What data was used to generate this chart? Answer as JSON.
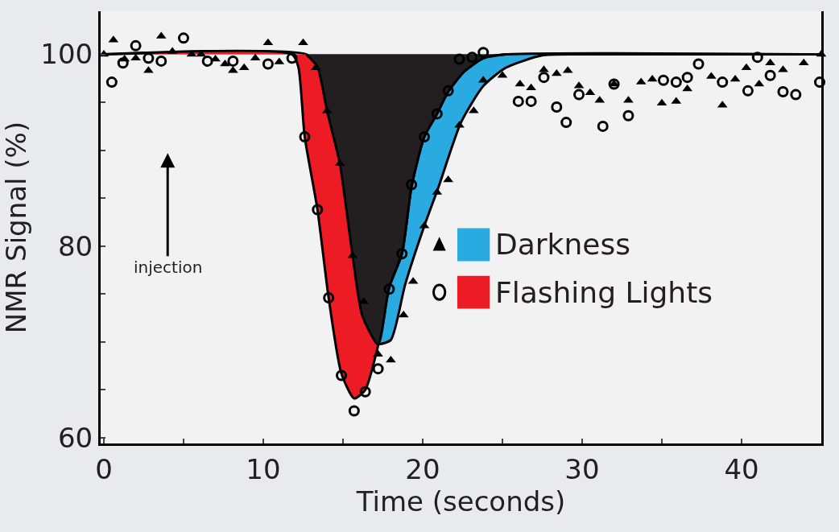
{
  "chart_data": {
    "type": "area",
    "xlabel": "Time (seconds)",
    "ylabel": "NMR Signal (%)",
    "xlim": [
      -0.2,
      45
    ],
    "ylim": [
      59.4,
      104.5
    ],
    "xticks": [
      0,
      {
        "value": 5,
        "label": null
      },
      10,
      {
        "value": 15,
        "label": null
      },
      20,
      {
        "value": 25,
        "label": null
      },
      30,
      {
        "value": 35,
        "label": null
      },
      40,
      {
        "value": 45,
        "label": null
      }
    ],
    "yticks": [
      60,
      {
        "value": 65,
        "label": null
      },
      {
        "value": 70,
        "label": null
      },
      {
        "value": 75,
        "label": null
      },
      80,
      {
        "value": 85,
        "label": null
      },
      {
        "value": 90,
        "label": null
      },
      {
        "value": 95,
        "label": null
      },
      100
    ],
    "annotations": [
      "injection"
    ],
    "legend": "right",
    "grid": false,
    "series": [
      {
        "name": "Darkness",
        "color": "#29abe2",
        "x": [
          0,
          12.7,
          13.4,
          14.0,
          14.8,
          15.6,
          16.2,
          17.2,
          18.0,
          18.9,
          20.1,
          21.0,
          22.4,
          23.8,
          25.2,
          27.5,
          30.2,
          45
        ],
        "values": [
          100,
          100,
          98.7,
          94.1,
          88.6,
          79.0,
          72.8,
          69.8,
          70.2,
          76.0,
          82.1,
          86.2,
          92.9,
          96.7,
          98.6,
          99.9,
          100,
          100
        ]
      },
      {
        "name": "Flashing Lights",
        "color": "#ed1c24",
        "x": [
          0,
          11.8,
          12.2,
          12.6,
          13.4,
          14.1,
          14.9,
          15.7,
          16.4,
          17.2,
          17.9,
          18.7,
          19.3,
          20.1,
          20.9,
          21.6,
          22.6,
          23.8,
          25.2,
          45
        ],
        "values": [
          100,
          100,
          98.7,
          91.4,
          83.8,
          74.6,
          66.7,
          64.1,
          65.0,
          69.6,
          75.7,
          79.2,
          86.2,
          91.4,
          93.8,
          96.1,
          98.2,
          99.6,
          100,
          100
        ]
      },
      {
        "color": "#231f20",
        "x": [
          12.7,
          13.4,
          14.0,
          14.8,
          15.6,
          16.2,
          17.2,
          17.9,
          18.7,
          19.3,
          20.1,
          20.9,
          21.6,
          22.6,
          23.8,
          25.2
        ],
        "values": [
          100,
          98.7,
          94.1,
          88.6,
          79.0,
          72.8,
          69.7,
          75.7,
          79.2,
          86.2,
          91.4,
          93.8,
          96.1,
          98.2,
          99.6,
          100
        ]
      },
      {
        "type": "scatter",
        "marker": "triangle",
        "color": "#000000",
        "x": [
          0,
          0.6,
          1.3,
          2.0,
          2.8,
          3.6,
          4.3,
          5.5,
          6.1,
          7.0,
          7.6,
          8.1,
          8.8,
          9.5,
          10.3,
          11.0,
          12.5,
          13.3,
          14.0,
          14.8,
          15.6,
          16.3,
          17.2,
          18.0,
          18.8,
          19.4,
          20.1,
          20.9,
          21.6,
          22.3,
          23.2,
          23.8,
          25.0,
          26.1,
          26.8,
          27.6,
          28.4,
          29.1,
          29.8,
          30.5,
          31.1,
          32.0,
          32.9,
          33.7,
          34.4,
          35.0,
          35.9,
          36.6,
          38.1,
          38.8,
          39.6,
          40.3,
          41.1,
          41.8,
          42.6,
          43.9,
          45.0
        ],
        "values": [
          100,
          101.5,
          99.5,
          99.6,
          98.3,
          101.9,
          100.3,
          100,
          100,
          99.5,
          99,
          98.3,
          98.6,
          99.6,
          101.2,
          99.2,
          101.2,
          98.6,
          94.1,
          88.6,
          79.0,
          74.2,
          68.7,
          68.1,
          72.8,
          76.3,
          82.1,
          85.6,
          86.9,
          92.6,
          94.1,
          97.3,
          97.8,
          96.9,
          96.5,
          98.4,
          98.0,
          98.3,
          96.7,
          96.0,
          95.2,
          96.9,
          95.2,
          97.1,
          97.4,
          94.9,
          95.1,
          96.4,
          97.7,
          94.7,
          97.4,
          98.6,
          96.9,
          99.1,
          98.4,
          99.1,
          100.0
        ]
      },
      {
        "type": "scatter",
        "marker": "circle",
        "color": "#000000",
        "x": [
          0.5,
          1.2,
          2.0,
          2.8,
          3.6,
          5.0,
          6.5,
          8.1,
          10.3,
          11.8,
          12.6,
          13.4,
          14.1,
          14.9,
          15.7,
          16.4,
          17.2,
          17.9,
          18.7,
          19.3,
          20.1,
          20.9,
          21.6,
          22.3,
          23.1,
          23.8,
          26.0,
          26.8,
          27.6,
          28.4,
          29.0,
          29.8,
          31.3,
          32.0,
          32.9,
          35.1,
          35.9,
          36.6,
          37.3,
          38.8,
          40.4,
          41.0,
          41.8,
          42.6,
          43.4,
          44.9
        ],
        "values": [
          97.1,
          99.1,
          100.9,
          99.6,
          99.3,
          101.7,
          99.3,
          99.3,
          99.0,
          99.6,
          91.4,
          83.8,
          74.6,
          66.5,
          62.8,
          64.8,
          67.2,
          75.5,
          79.2,
          86.4,
          91.4,
          93.8,
          96.2,
          99.5,
          99.7,
          100.2,
          95.1,
          95.1,
          97.6,
          94.5,
          92.9,
          95.8,
          92.5,
          96.9,
          93.6,
          97.3,
          97.1,
          97.6,
          99.0,
          97.1,
          96.2,
          99.7,
          97.8,
          96.1,
          95.8,
          97.1
        ]
      }
    ]
  }
}
